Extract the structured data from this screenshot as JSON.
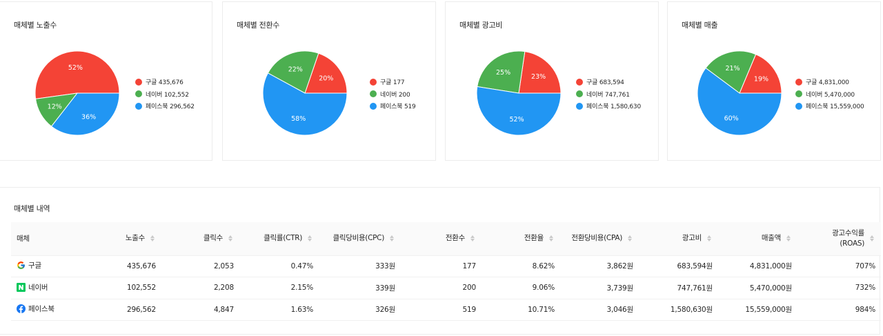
{
  "colors": {
    "google": "#f44336",
    "naver": "#4caf50",
    "facebook": "#2196f3"
  },
  "charts": [
    {
      "title": "매체별 노출수",
      "legend": [
        {
          "label": "구글 435,676",
          "value": 435676,
          "percent": "52%"
        },
        {
          "label": "네이버 102,552",
          "value": 102552,
          "percent": "12%"
        },
        {
          "label": "페이스북 296,562",
          "value": 296562,
          "percent": "36%"
        }
      ]
    },
    {
      "title": "매체별 전환수",
      "legend": [
        {
          "label": "구글 177",
          "value": 177,
          "percent": "20%"
        },
        {
          "label": "네이버 200",
          "value": 200,
          "percent": "22%"
        },
        {
          "label": "페이스북 519",
          "value": 519,
          "percent": "58%"
        }
      ]
    },
    {
      "title": "매체별 광고비",
      "legend": [
        {
          "label": "구글 683,594",
          "value": 683594,
          "percent": "23%"
        },
        {
          "label": "네이버 747,761",
          "value": 747761,
          "percent": "25%"
        },
        {
          "label": "페이스북 1,580,630",
          "value": 1580630,
          "percent": "52%"
        }
      ]
    },
    {
      "title": "매체별 매출",
      "legend": [
        {
          "label": "구글 4,831,000",
          "value": 4831000,
          "percent": "19%"
        },
        {
          "label": "네이버 5,470,000",
          "value": 5470000,
          "percent": "21%"
        },
        {
          "label": "페이스북 15,559,000",
          "value": 15559000,
          "percent": "60%"
        }
      ]
    }
  ],
  "chart_data": [
    {
      "type": "pie",
      "title": "매체별 노출수",
      "categories": [
        "구글",
        "네이버",
        "페이스북"
      ],
      "values": [
        435676,
        102552,
        296562
      ],
      "percent_labels": [
        "52%",
        "12%",
        "36%"
      ],
      "colors": [
        "#f44336",
        "#4caf50",
        "#2196f3"
      ],
      "legend_position": "right"
    },
    {
      "type": "pie",
      "title": "매체별 전환수",
      "categories": [
        "구글",
        "네이버",
        "페이스북"
      ],
      "values": [
        177,
        200,
        519
      ],
      "percent_labels": [
        "20%",
        "22%",
        "58%"
      ],
      "colors": [
        "#f44336",
        "#4caf50",
        "#2196f3"
      ],
      "legend_position": "right"
    },
    {
      "type": "pie",
      "title": "매체별 광고비",
      "categories": [
        "구글",
        "네이버",
        "페이스북"
      ],
      "values": [
        683594,
        747761,
        1580630
      ],
      "percent_labels": [
        "23%",
        "25%",
        "52%"
      ],
      "colors": [
        "#f44336",
        "#4caf50",
        "#2196f3"
      ],
      "legend_position": "right"
    },
    {
      "type": "pie",
      "title": "매체별 매출",
      "categories": [
        "구글",
        "네이버",
        "페이스북"
      ],
      "values": [
        4831000,
        5470000,
        15559000
      ],
      "percent_labels": [
        "19%",
        "21%",
        "60%"
      ],
      "colors": [
        "#f44336",
        "#4caf50",
        "#2196f3"
      ],
      "legend_position": "right"
    },
    {
      "type": "table",
      "title": "매체별 내역",
      "columns": [
        "매체",
        "노출수",
        "클릭수",
        "클릭률(CTR)",
        "클릭당비용(CPC)",
        "전환수",
        "전환율",
        "전환당비용(CPA)",
        "광고비",
        "매출액",
        "광고수익률 (ROAS)"
      ],
      "rows": [
        [
          "구글",
          "435,676",
          "2,053",
          "0.47%",
          "333원",
          "177",
          "8.62%",
          "3,862원",
          "683,594원",
          "4,831,000원",
          "707%"
        ],
        [
          "네이버",
          "102,552",
          "2,208",
          "2.15%",
          "339원",
          "200",
          "9.06%",
          "3,739원",
          "747,761원",
          "5,470,000원",
          "732%"
        ],
        [
          "페이스북",
          "296,562",
          "4,847",
          "1.63%",
          "326원",
          "519",
          "10.71%",
          "3,046원",
          "1,580,630원",
          "15,559,000원",
          "984%"
        ]
      ]
    }
  ],
  "table": {
    "title": "매체별 내역",
    "headers": [
      {
        "line1": "매체",
        "line2": ""
      },
      {
        "line1": "노출수",
        "line2": ""
      },
      {
        "line1": "클릭수",
        "line2": ""
      },
      {
        "line1": "클릭률(CTR)",
        "line2": ""
      },
      {
        "line1": "클릭당비용(CPC)",
        "line2": ""
      },
      {
        "line1": "전환수",
        "line2": ""
      },
      {
        "line1": "전환율",
        "line2": ""
      },
      {
        "line1": "전환당비용(CPA)",
        "line2": ""
      },
      {
        "line1": "광고비",
        "line2": ""
      },
      {
        "line1": "매출액",
        "line2": ""
      },
      {
        "line1": "광고수익률",
        "line2": "(ROAS)"
      }
    ],
    "rows": [
      {
        "media": "구글",
        "icon": "google-icon",
        "cells": [
          "435,676",
          "2,053",
          "0.47%",
          "333원",
          "177",
          "8.62%",
          "3,862원",
          "683,594원",
          "4,831,000원",
          "707%"
        ]
      },
      {
        "media": "네이버",
        "icon": "naver-icon",
        "cells": [
          "102,552",
          "2,208",
          "2.15%",
          "339원",
          "200",
          "9.06%",
          "3,739원",
          "747,761원",
          "5,470,000원",
          "732%"
        ]
      },
      {
        "media": "페이스북",
        "icon": "facebook-icon",
        "cells": [
          "296,562",
          "4,847",
          "1.63%",
          "326원",
          "519",
          "10.71%",
          "3,046원",
          "1,580,630원",
          "15,559,000원",
          "984%"
        ]
      }
    ]
  }
}
